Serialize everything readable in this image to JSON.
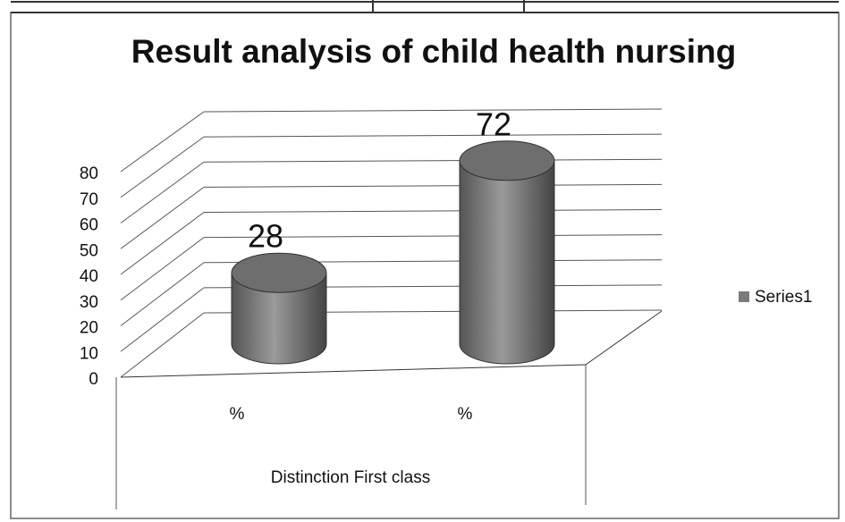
{
  "chart_data": {
    "type": "bar3d",
    "title": "Result analysis of child health nursing",
    "categories": [
      "%",
      "%"
    ],
    "x_label": "Distinction First class",
    "series": [
      {
        "name": "Series1",
        "color": "#7a7a7a",
        "values": [
          28,
          72
        ]
      }
    ],
    "ylim": [
      0,
      80
    ],
    "yticks": [
      0,
      10,
      20,
      30,
      40,
      50,
      60,
      70,
      80
    ],
    "grid": true,
    "legend": "right"
  }
}
